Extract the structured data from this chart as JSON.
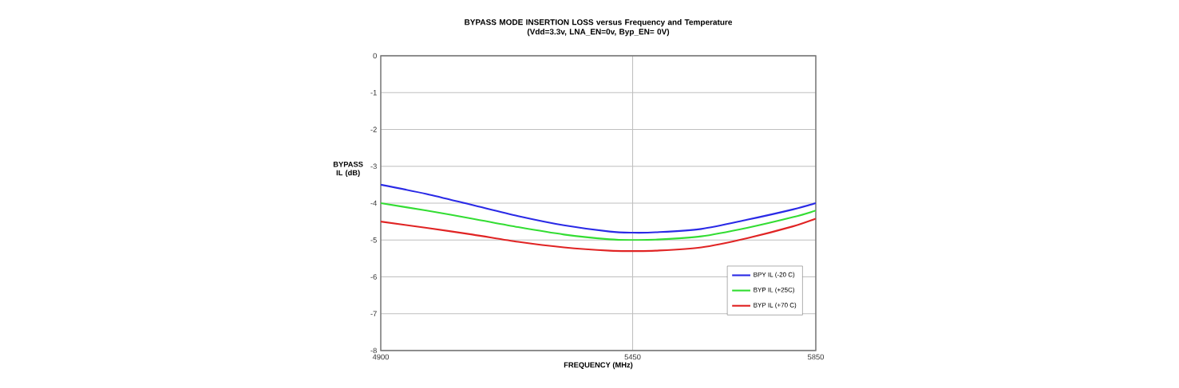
{
  "chart_data": {
    "type": "line",
    "title": "BYPASS MODE INSERTION LOSS versus Frequency and Temperature\n(Vdd=3.3v, LNA_EN=0v, Byp_EN= 0V)",
    "xlabel": "FREQUENCY (MHz)",
    "ylabel": "BYPASS IL (dB)",
    "x": [
      4900,
      5000,
      5100,
      5200,
      5300,
      5400,
      5450,
      5500,
      5600,
      5700,
      5800,
      5850
    ],
    "series": [
      {
        "name": "BPY IL (-20 C)",
        "color": "#2a2ae6",
        "values": [
          -3.5,
          -3.75,
          -4.05,
          -4.35,
          -4.6,
          -4.77,
          -4.8,
          -4.79,
          -4.7,
          -4.45,
          -4.17,
          -4.0
        ]
      },
      {
        "name": "BYP IL (+25C)",
        "color": "#33dd33",
        "values": [
          -4.0,
          -4.2,
          -4.42,
          -4.65,
          -4.85,
          -4.98,
          -5.0,
          -4.99,
          -4.9,
          -4.67,
          -4.38,
          -4.2
        ]
      },
      {
        "name": "BYP IL (+70 C)",
        "color": "#e02424",
        "values": [
          -4.5,
          -4.67,
          -4.85,
          -5.05,
          -5.2,
          -5.29,
          -5.3,
          -5.29,
          -5.2,
          -4.95,
          -4.63,
          -4.42
        ]
      }
    ],
    "xlim": [
      4900,
      5850
    ],
    "ylim": [
      -8,
      0
    ],
    "xticks": [
      4900,
      5450,
      5850
    ],
    "yticks": [
      -8,
      -7,
      -6,
      -5,
      -4,
      -3,
      -2,
      -1,
      0
    ],
    "grid": true,
    "legend": "bottom right"
  }
}
